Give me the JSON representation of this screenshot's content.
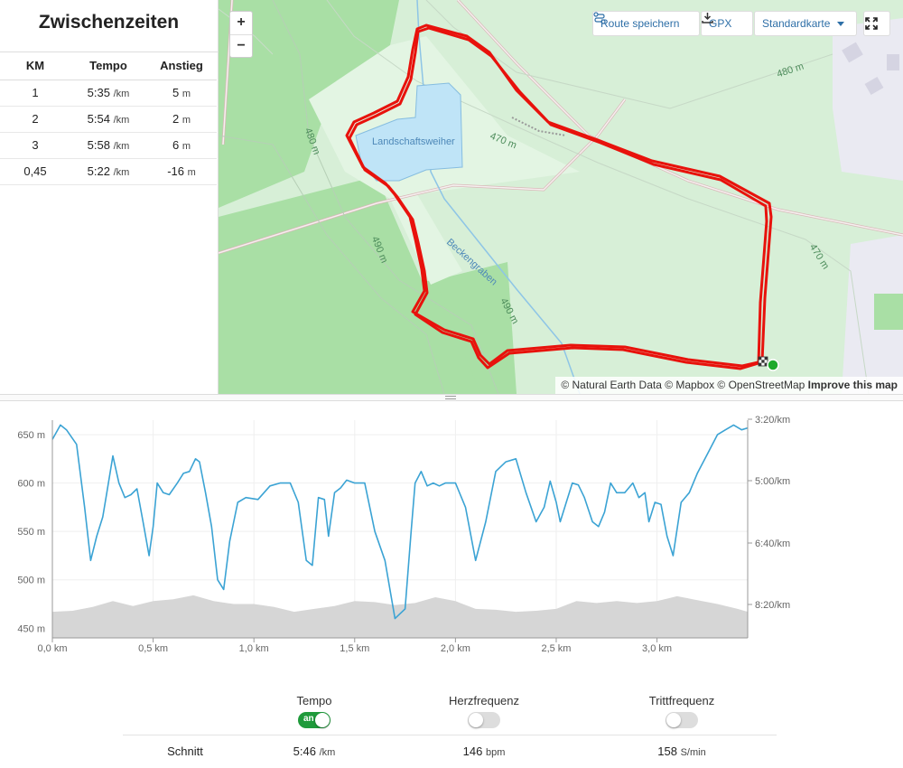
{
  "splits": {
    "title": "Zwischenzeiten",
    "headers": {
      "km": "KM",
      "pace": "Tempo",
      "climb": "Anstieg"
    },
    "rows": [
      {
        "km": "1",
        "pace": "5:35",
        "pace_unit": "/km",
        "climb": "5",
        "climb_unit": "m"
      },
      {
        "km": "2",
        "pace": "5:54",
        "pace_unit": "/km",
        "climb": "2",
        "climb_unit": "m"
      },
      {
        "km": "3",
        "pace": "5:58",
        "pace_unit": "/km",
        "climb": "6",
        "climb_unit": "m"
      },
      {
        "km": "0,45",
        "pace": "5:22",
        "pace_unit": "/km",
        "climb": "-16",
        "climb_unit": "m"
      }
    ]
  },
  "map": {
    "zoom_in": "+",
    "zoom_out": "−",
    "save_route": "Route speichern",
    "gpx": "GPX",
    "map_style": "Standardkarte",
    "attribution": "© Natural Earth Data © Mapbox © OpenStreetMap",
    "improve": "Improve this map",
    "labels": {
      "lake": "Landschaftsweiher",
      "stream": "Beckengraben",
      "c480_top": "480 m",
      "c480_left": "480 m",
      "c470_mid": "470 m",
      "c470_right": "470 m",
      "c490_left": "490 m",
      "c490_mid": "490 m"
    },
    "colors": {
      "route": "#e8120c",
      "start_marker": "#1faa2c",
      "water": "#bfe4f7"
    }
  },
  "chart_data": {
    "type": "line",
    "xlabel": "",
    "x_ticks": [
      "0,0 km",
      "0,5 km",
      "1,0 km",
      "1,5 km",
      "2,0 km",
      "2,5 km",
      "3,0 km"
    ],
    "x_range": [
      0,
      3.45
    ],
    "y_left_ticks": [
      "650 m",
      "600 m",
      "550 m",
      "500 m",
      "450 m"
    ],
    "y_left_range": [
      440,
      665
    ],
    "y_right_ticks": [
      "3:20/km",
      "5:00/km",
      "6:40/km",
      "8:20/km"
    ],
    "series": [
      {
        "name": "",
        "kind": "pace",
        "color": "#3ba3d4",
        "x": [
          0,
          0.04,
          0.07,
          0.12,
          0.16,
          0.19,
          0.22,
          0.25,
          0.27,
          0.3,
          0.33,
          0.36,
          0.39,
          0.42,
          0.45,
          0.48,
          0.5,
          0.52,
          0.55,
          0.58,
          0.62,
          0.65,
          0.68,
          0.71,
          0.73,
          0.76,
          0.79,
          0.82,
          0.85,
          0.88,
          0.92,
          0.96,
          1.02,
          1.08,
          1.13,
          1.18,
          1.22,
          1.26,
          1.29,
          1.32,
          1.35,
          1.37,
          1.4,
          1.43,
          1.46,
          1.5,
          1.55,
          1.6,
          1.65,
          1.7,
          1.75,
          1.78,
          1.8,
          1.83,
          1.86,
          1.89,
          1.92,
          1.95,
          2.0,
          2.05,
          2.1,
          2.15,
          2.2,
          2.25,
          2.3,
          2.35,
          2.4,
          2.44,
          2.47,
          2.5,
          2.52,
          2.55,
          2.58,
          2.61,
          2.64,
          2.68,
          2.71,
          2.74,
          2.77,
          2.8,
          2.84,
          2.88,
          2.91,
          2.94,
          2.96,
          2.99,
          3.02,
          3.05,
          3.08,
          3.12,
          3.16,
          3.2,
          3.25,
          3.3,
          3.34,
          3.38,
          3.42,
          3.45
        ],
        "y": [
          645,
          660,
          655,
          640,
          575,
          520,
          545,
          565,
          590,
          628,
          600,
          585,
          588,
          594,
          560,
          525,
          555,
          600,
          590,
          588,
          600,
          610,
          612,
          625,
          622,
          590,
          555,
          500,
          490,
          540,
          580,
          585,
          583,
          597,
          600,
          600,
          580,
          520,
          515,
          585,
          583,
          545,
          590,
          595,
          603,
          600,
          600,
          550,
          520,
          460,
          470,
          550,
          600,
          612,
          597,
          600,
          597,
          600,
          600,
          575,
          520,
          560,
          612,
          622,
          625,
          590,
          560,
          575,
          602,
          580,
          560,
          580,
          600,
          598,
          585,
          560,
          555,
          570,
          600,
          590,
          590,
          600,
          585,
          590,
          560,
          580,
          578,
          545,
          525,
          580,
          590,
          610,
          630,
          650,
          655,
          660,
          655,
          657
        ]
      },
      {
        "name": "",
        "kind": "elevation",
        "color": "#d6d6d6",
        "x": [
          0,
          0.1,
          0.2,
          0.3,
          0.4,
          0.5,
          0.6,
          0.7,
          0.8,
          0.9,
          1.0,
          1.1,
          1.2,
          1.3,
          1.4,
          1.5,
          1.6,
          1.7,
          1.8,
          1.9,
          2.0,
          2.1,
          2.2,
          2.3,
          2.4,
          2.5,
          2.6,
          2.7,
          2.8,
          2.9,
          3.0,
          3.1,
          3.2,
          3.3,
          3.4,
          3.45
        ],
        "y": [
          467,
          468,
          472,
          478,
          473,
          478,
          480,
          484,
          478,
          475,
          475,
          472,
          467,
          470,
          473,
          478,
          477,
          474,
          476,
          482,
          478,
          470,
          469,
          467,
          468,
          470,
          478,
          476,
          478,
          476,
          478,
          483,
          479,
          475,
          470,
          467
        ]
      }
    ]
  },
  "metrics": {
    "row_label": "Schnitt",
    "columns": [
      {
        "name": "Tempo",
        "toggle_on": true,
        "toggle_text": "an",
        "value": "5:46",
        "unit": "/km"
      },
      {
        "name": "Herzfrequenz",
        "toggle_on": false,
        "toggle_text": "",
        "value": "146",
        "unit": "bpm"
      },
      {
        "name": "Trittfrequenz",
        "toggle_on": false,
        "toggle_text": "",
        "value": "158",
        "unit": "S/min"
      }
    ]
  }
}
